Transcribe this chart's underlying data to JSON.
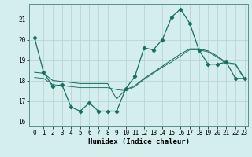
{
  "xlabel": "Humidex (Indice chaleur)",
  "background_color": "#d4eeee",
  "grid_color": "#b8d4d4",
  "line_color": "#1a6e60",
  "xlim_min": -0.6,
  "xlim_max": 23.4,
  "ylim_min": 15.75,
  "ylim_max": 21.75,
  "yticks": [
    16,
    17,
    18,
    19,
    20,
    21
  ],
  "xticks": [
    0,
    1,
    2,
    3,
    4,
    5,
    6,
    7,
    8,
    9,
    10,
    11,
    12,
    13,
    14,
    15,
    16,
    17,
    18,
    19,
    20,
    21,
    22,
    23
  ],
  "s1_x": [
    0,
    1,
    2,
    3,
    4,
    5,
    6,
    7,
    8,
    9,
    10,
    11,
    12,
    13,
    14,
    15,
    16,
    17,
    18,
    19,
    20,
    21,
    22,
    23
  ],
  "s1_y": [
    20.1,
    18.4,
    17.7,
    17.8,
    16.7,
    16.5,
    16.9,
    16.5,
    16.5,
    16.5,
    17.6,
    18.2,
    19.6,
    19.5,
    20.0,
    21.1,
    21.5,
    20.8,
    19.5,
    18.8,
    18.8,
    18.9,
    18.1,
    18.1
  ],
  "s2_x": [
    0,
    1,
    2,
    3,
    4,
    5,
    6,
    7,
    8,
    9,
    10,
    11,
    12,
    13,
    14,
    15,
    16,
    17,
    18,
    19,
    20,
    21,
    22,
    23
  ],
  "s2_y": [
    18.4,
    18.35,
    18.0,
    17.95,
    17.9,
    17.85,
    17.85,
    17.85,
    17.85,
    17.1,
    17.55,
    17.75,
    18.1,
    18.4,
    18.7,
    19.0,
    19.3,
    19.55,
    19.55,
    19.45,
    19.2,
    18.88,
    18.82,
    18.1
  ],
  "s3_x": [
    0,
    1,
    2,
    3,
    4,
    5,
    6,
    7,
    8,
    9,
    10,
    11,
    12,
    13,
    14,
    15,
    16,
    17,
    18,
    19,
    20,
    21,
    22,
    23
  ],
  "s3_y": [
    18.15,
    18.1,
    17.8,
    17.75,
    17.7,
    17.65,
    17.65,
    17.65,
    17.65,
    17.55,
    17.5,
    17.7,
    18.05,
    18.35,
    18.65,
    18.9,
    19.2,
    19.5,
    19.5,
    19.4,
    19.15,
    18.82,
    18.78,
    18.05
  ],
  "marker_size": 2.2,
  "line_width": 0.9,
  "thin_lw": 0.75
}
